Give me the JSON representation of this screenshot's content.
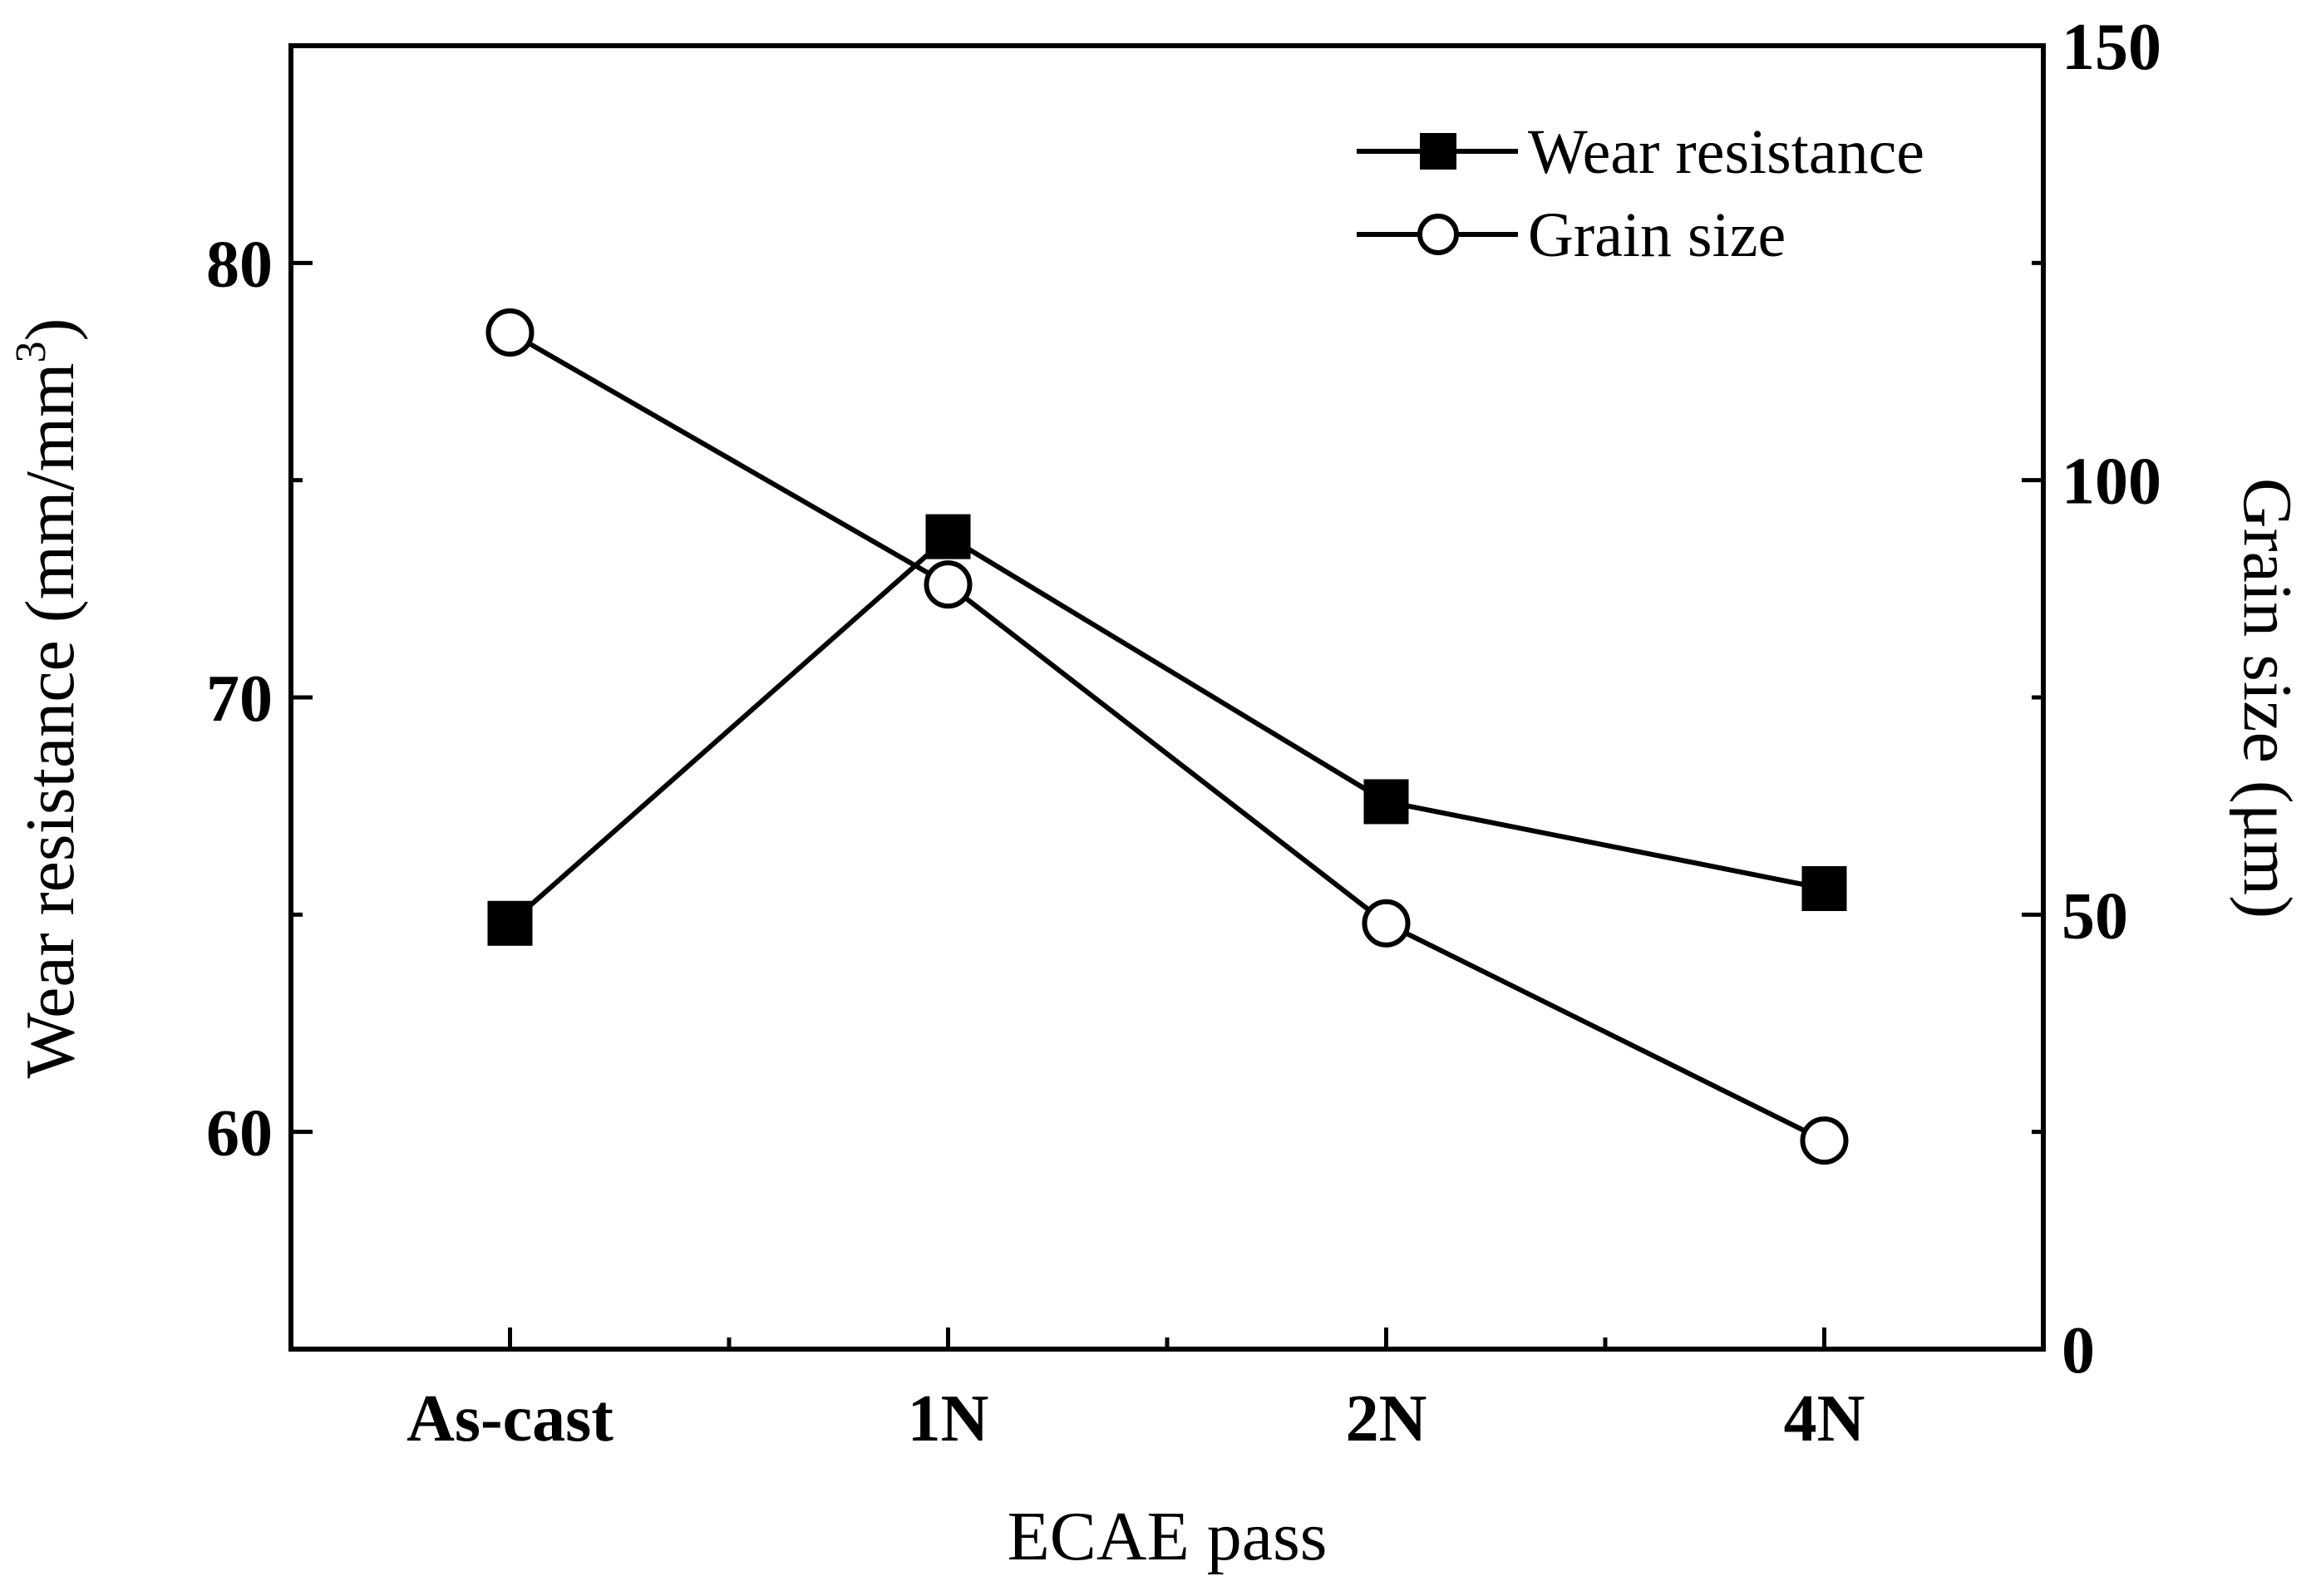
{
  "chart_data": {
    "type": "line",
    "title": "",
    "categories": [
      "As-cast",
      "1N",
      "2N",
      "4N"
    ],
    "xlabel": "ECAE pass",
    "ylabel_left": "Wear resistance (mm/mm",
    "ylabel_left_sup": "3",
    "ylabel_left_close": ")",
    "ylabel_right": "Grain size (μm)",
    "ylim_left": [
      55,
      85
    ],
    "ylim_right": [
      0,
      150
    ],
    "yticks_left": [
      60,
      70,
      80
    ],
    "yticks_right": [
      0,
      50,
      100,
      150
    ],
    "legend_position": "top-right",
    "series": [
      {
        "name": "Wear resistance",
        "axis": "left",
        "marker": "filled-square",
        "values": [
          64.8,
          73.7,
          67.6,
          65.6
        ]
      },
      {
        "name": "Grain size",
        "axis": "right",
        "marker": "open-circle",
        "values": [
          117,
          88,
          49,
          24
        ]
      }
    ]
  }
}
